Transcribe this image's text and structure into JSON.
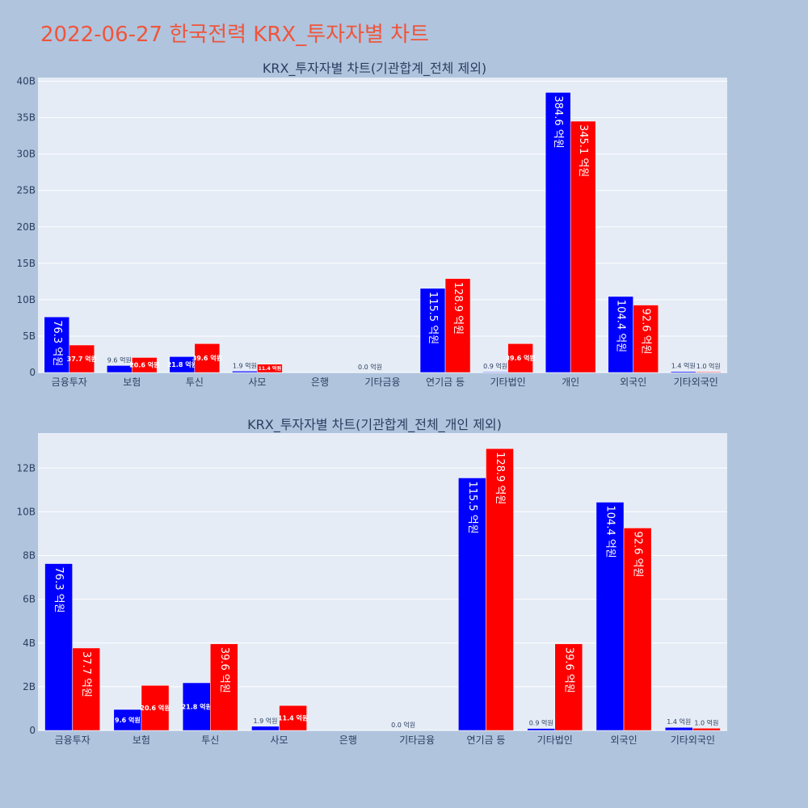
{
  "title": "2022-06-27 한국전력 KRX_투자자별 차트",
  "colors": {
    "series1": "#0000ff",
    "series2": "#ff0000",
    "plot_bg": "#e5ecf6",
    "paper_bg": "#b0c4de",
    "title": "#ef553b"
  },
  "chart_data": [
    {
      "type": "bar",
      "title": "KRX_투자자별 차트(기관합계_전체 제외)",
      "categories": [
        "금융투자",
        "보험",
        "투신",
        "사모",
        "은행",
        "기타금융",
        "연기금 등",
        "기타법인",
        "개인",
        "외국인",
        "기타외국인"
      ],
      "series": [
        {
          "values": [
            7.63,
            0.96,
            2.18,
            0.19,
            0,
            0,
            11.55,
            0.09,
            38.46,
            10.44,
            0.14
          ],
          "labels": [
            "76.3 억원",
            "9.6 억원",
            "21.8 억원",
            "1.9 억원",
            "",
            "0.0 억원",
            "115.5 억원",
            "0.9 억원",
            "384.6 억원",
            "104.4 억원",
            "1.4 억원"
          ]
        },
        {
          "values": [
            3.77,
            2.06,
            3.96,
            1.14,
            0,
            0,
            12.89,
            3.96,
            34.51,
            9.26,
            0.1
          ],
          "labels": [
            "37.7 억원",
            "20.6 억원",
            "39.6 억원",
            "11.4 억원",
            "",
            "",
            "128.9 억원",
            "39.6 억원",
            "345.1 억원",
            "92.6 억원",
            "1.0 억원"
          ]
        }
      ],
      "ylim": [
        0,
        40.5
      ],
      "yticks": [
        0,
        5,
        10,
        15,
        20,
        25,
        30,
        35,
        40
      ],
      "ytick_labels": [
        "0",
        "5B",
        "10B",
        "15B",
        "20B",
        "25B",
        "30B",
        "35B",
        "40B"
      ],
      "grid": true
    },
    {
      "type": "bar",
      "title": "KRX_투자자별 차트(기관합계_전체_개인 제외)",
      "categories": [
        "금융투자",
        "보험",
        "투신",
        "사모",
        "은행",
        "기타금융",
        "연기금 등",
        "기타법인",
        "외국인",
        "기타외국인"
      ],
      "series": [
        {
          "values": [
            7.63,
            0.96,
            2.18,
            0.19,
            0,
            0,
            11.55,
            0.09,
            10.44,
            0.14
          ],
          "labels": [
            "76.3 억원",
            "9.6 억원",
            "21.8 억원",
            "1.9 억원",
            "",
            "0.0 억원",
            "115.5 억원",
            "0.9 억원",
            "104.4 억원",
            "1.4 억원"
          ]
        },
        {
          "values": [
            3.77,
            2.06,
            3.96,
            1.14,
            0,
            0,
            12.89,
            3.96,
            9.26,
            0.1
          ],
          "labels": [
            "37.7 억원",
            "20.6 억원",
            "39.6 억원",
            "11.4 억원",
            "",
            "",
            "128.9 억원",
            "39.6 억원",
            "92.6 억원",
            "1.0 억원"
          ]
        }
      ],
      "ylim": [
        0,
        13.6
      ],
      "yticks": [
        0,
        2,
        4,
        6,
        8,
        10,
        12
      ],
      "ytick_labels": [
        "0",
        "2B",
        "4B",
        "6B",
        "8B",
        "10B",
        "12B"
      ],
      "grid": true
    }
  ]
}
